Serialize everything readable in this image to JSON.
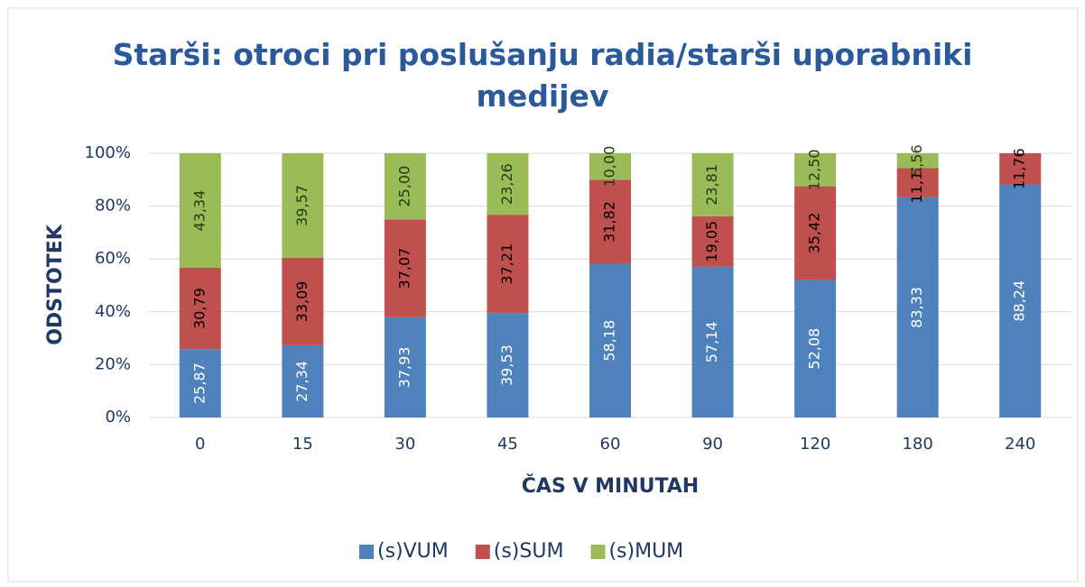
{
  "chart_data": {
    "type": "stacked_bar",
    "title": "Starši: otroci pri poslušanju radia/starši uporabniki medijev",
    "x_label": "ČAS V MINUTAH",
    "y_label": "ODSTOTEK",
    "categories": [
      "0",
      "15",
      "30",
      "45",
      "60",
      "90",
      "120",
      "180",
      "240"
    ],
    "series": [
      {
        "name": "(s)VUM",
        "color": "#4f81bd",
        "label_color": "#ffffff",
        "values": [
          25.87,
          27.34,
          37.93,
          39.53,
          58.18,
          57.14,
          52.08,
          83.33,
          88.24
        ],
        "value_labels": [
          "25,87",
          "27,34",
          "37,93",
          "39,53",
          "58,18",
          "57,14",
          "52,08",
          "83,33",
          "88,24"
        ]
      },
      {
        "name": "(s)SUM",
        "color": "#c0504d",
        "label_color": "#000000",
        "values": [
          30.79,
          33.09,
          37.07,
          37.21,
          31.82,
          19.05,
          35.42,
          11.11,
          11.76
        ],
        "value_labels": [
          "30,79",
          "33,09",
          "37,07",
          "37,21",
          "31,82",
          "19,05",
          "35,42",
          "11,11",
          "11,76"
        ]
      },
      {
        "name": "(s)MUM",
        "color": "#9bbb59",
        "label_color": "#1f3d10",
        "values": [
          43.34,
          39.57,
          25.0,
          23.26,
          10.0,
          23.81,
          12.5,
          5.56,
          null
        ],
        "value_labels": [
          "43,34",
          "39,57",
          "25,00",
          "23,26",
          "10,00",
          "23,81",
          "12,50",
          "5,56",
          null
        ]
      }
    ],
    "ylim": [
      0,
      100
    ],
    "yticks": [
      {
        "value": 0,
        "label": "0%"
      },
      {
        "value": 20,
        "label": "20%"
      },
      {
        "value": 40,
        "label": "40%"
      },
      {
        "value": 60,
        "label": "60%"
      },
      {
        "value": 80,
        "label": "80%"
      },
      {
        "value": 100,
        "label": "100%"
      }
    ],
    "grid": true,
    "legend": "bottom"
  }
}
